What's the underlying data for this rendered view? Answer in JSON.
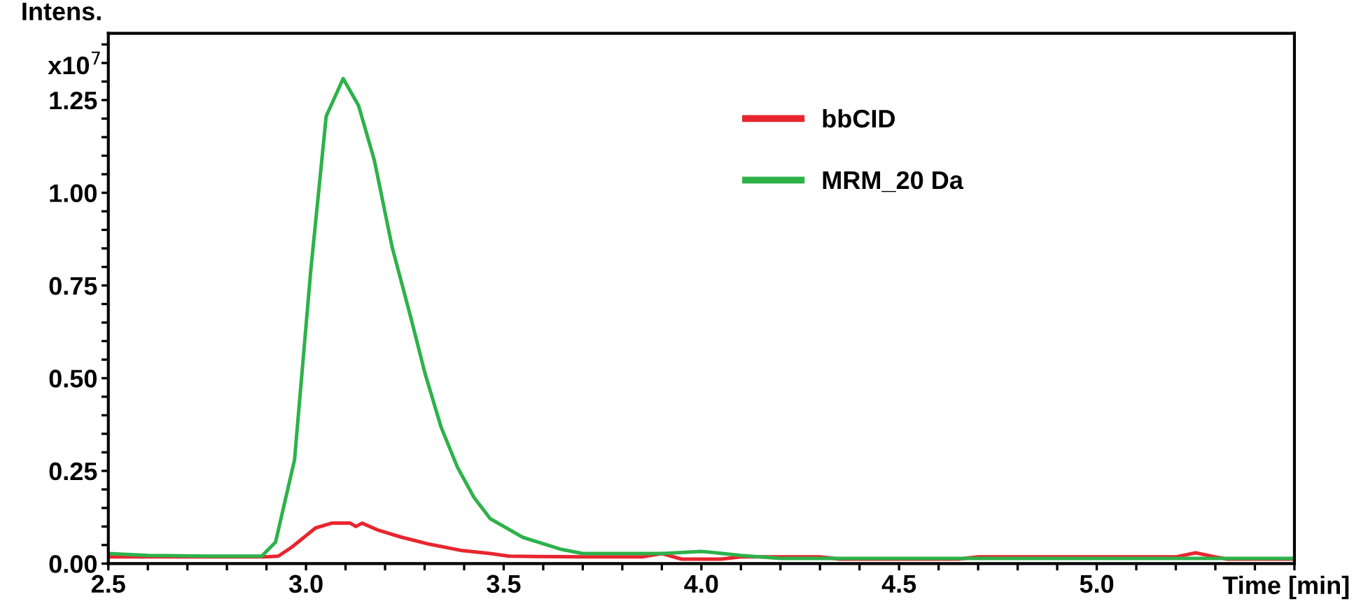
{
  "chart_data": {
    "type": "line",
    "ylabel": "Intens.",
    "xlabel": "Time [min]",
    "annotations": [
      "x10$^{7}$"
    ],
    "xlim": [
      2.5,
      5.5
    ],
    "ylim": [
      0,
      1.43
    ],
    "xticks": [
      {
        "value": 2.5,
        "label": "2.5"
      },
      {
        "value": 2.6,
        "label": null
      },
      {
        "value": 2.7,
        "label": null
      },
      {
        "value": 2.8,
        "label": null
      },
      {
        "value": 2.9,
        "label": null
      },
      {
        "value": 3.0,
        "label": "3.0"
      },
      {
        "value": 3.1,
        "label": null
      },
      {
        "value": 3.2,
        "label": null
      },
      {
        "value": 3.3,
        "label": null
      },
      {
        "value": 3.4,
        "label": null
      },
      {
        "value": 3.5,
        "label": "3.5"
      },
      {
        "value": 3.6,
        "label": null
      },
      {
        "value": 3.7,
        "label": null
      },
      {
        "value": 3.8,
        "label": null
      },
      {
        "value": 3.9,
        "label": null
      },
      {
        "value": 4.0,
        "label": "4.0"
      },
      {
        "value": 4.1,
        "label": null
      },
      {
        "value": 4.2,
        "label": null
      },
      {
        "value": 4.3,
        "label": null
      },
      {
        "value": 4.4,
        "label": null
      },
      {
        "value": 4.5,
        "label": "4.5"
      },
      {
        "value": 4.6,
        "label": null
      },
      {
        "value": 4.7,
        "label": null
      },
      {
        "value": 4.8,
        "label": null
      },
      {
        "value": 4.9,
        "label": null
      },
      {
        "value": 5.0,
        "label": "5.0"
      },
      {
        "value": 5.1,
        "label": null
      },
      {
        "value": 5.2,
        "label": null
      },
      {
        "value": 5.3,
        "label": null
      },
      {
        "value": 5.4,
        "label": null
      },
      {
        "value": 5.5,
        "label": null
      }
    ],
    "yticks": [
      {
        "value": 0,
        "label": "0.00"
      },
      {
        "value": 0.05,
        "label": null
      },
      {
        "value": 0.1,
        "label": null
      },
      {
        "value": 0.15,
        "label": null
      },
      {
        "value": 0.2,
        "label": null
      },
      {
        "value": 0.25,
        "label": "0.25"
      },
      {
        "value": 0.3,
        "label": null
      },
      {
        "value": 0.35,
        "label": null
      },
      {
        "value": 0.4,
        "label": null
      },
      {
        "value": 0.45,
        "label": null
      },
      {
        "value": 0.5,
        "label": "0.50"
      },
      {
        "value": 0.55,
        "label": null
      },
      {
        "value": 0.6,
        "label": null
      },
      {
        "value": 0.65,
        "label": null
      },
      {
        "value": 0.7,
        "label": null
      },
      {
        "value": 0.75,
        "label": "0.75"
      },
      {
        "value": 0.8,
        "label": null
      },
      {
        "value": 0.85,
        "label": null
      },
      {
        "value": 0.9,
        "label": null
      },
      {
        "value": 0.95,
        "label": null
      },
      {
        "value": 1.0,
        "label": "1.00"
      },
      {
        "value": 1.05,
        "label": null
      },
      {
        "value": 1.1,
        "label": null
      },
      {
        "value": 1.15,
        "label": null
      },
      {
        "value": 1.2,
        "label": null
      },
      {
        "value": 1.25,
        "label": "1.25"
      },
      {
        "value": 1.3,
        "label": null
      },
      {
        "value": 1.35,
        "label": null
      },
      {
        "value": 1.4,
        "label": null
      }
    ],
    "grid": false,
    "legend": "top right",
    "marker": "none",
    "line_style": "solid",
    "series": [
      {
        "name": "bbCID",
        "color": "#e8252e",
        "x": [
          2.5,
          2.7,
          2.9,
          2.93,
          2.965,
          3.024,
          3.065,
          3.112,
          3.126,
          3.142,
          3.183,
          3.242,
          3.313,
          3.395,
          3.466,
          3.513,
          3.7,
          3.85,
          3.9,
          3.95,
          4.05,
          4.1,
          4.3,
          4.35,
          4.65,
          4.7,
          5.2,
          5.25,
          5.3,
          5.33,
          5.5
        ],
        "values": [
          0.018,
          0.018,
          0.018,
          0.02,
          0.045,
          0.096,
          0.109,
          0.109,
          0.1,
          0.109,
          0.09,
          0.071,
          0.052,
          0.035,
          0.027,
          0.02,
          0.018,
          0.018,
          0.027,
          0.012,
          0.012,
          0.018,
          0.018,
          0.012,
          0.012,
          0.018,
          0.018,
          0.029,
          0.018,
          0.012,
          0.012
        ]
      },
      {
        "name": "MRM_20 Da",
        "color": "#2db24a",
        "x": [
          2.5,
          2.6,
          2.758,
          2.888,
          2.923,
          2.971,
          3.012,
          3.051,
          3.094,
          3.133,
          3.173,
          3.218,
          3.265,
          3.301,
          3.342,
          3.383,
          3.425,
          3.466,
          3.548,
          3.643,
          3.7,
          3.9,
          4.0,
          4.1,
          4.2,
          5.5
        ],
        "values": [
          0.027,
          0.022,
          0.02,
          0.02,
          0.058,
          0.28,
          0.79,
          1.206,
          1.308,
          1.235,
          1.087,
          0.853,
          0.664,
          0.513,
          0.367,
          0.26,
          0.178,
          0.121,
          0.071,
          0.039,
          0.027,
          0.027,
          0.033,
          0.022,
          0.014,
          0.014
        ]
      }
    ]
  }
}
